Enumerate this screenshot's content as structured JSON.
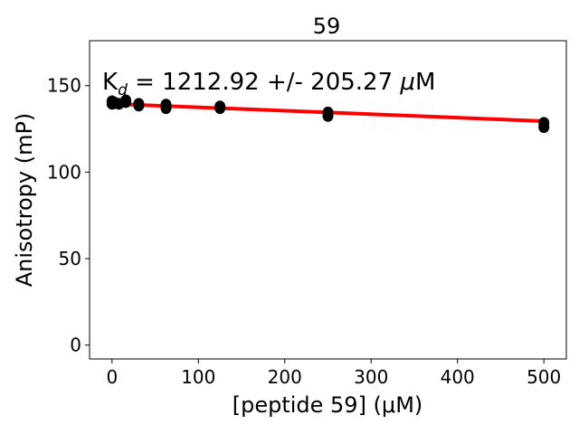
{
  "chart_data": {
    "type": "scatter",
    "title": "59",
    "xlabel": "[peptide 59] (μM)",
    "ylabel": "Anisotropy (mP)",
    "annotation": {
      "k": "K",
      "sub": "d",
      "rest": " = 1212.92 +/- 205.27 ",
      "mu": "μ",
      "unit": "M"
    },
    "xlim": [
      -26,
      526
    ],
    "ylim": [
      -8,
      176
    ],
    "xticks": [
      0,
      100,
      200,
      300,
      400,
      500
    ],
    "yticks": [
      0,
      50,
      100,
      150
    ],
    "grid": false,
    "points": [
      {
        "x": 0,
        "y": 141
      },
      {
        "x": 0,
        "y": 139.5
      },
      {
        "x": 4,
        "y": 140
      },
      {
        "x": 8,
        "y": 139.5
      },
      {
        "x": 16,
        "y": 141.5
      },
      {
        "x": 16,
        "y": 140.5
      },
      {
        "x": 31,
        "y": 139.5
      },
      {
        "x": 31,
        "y": 138.5
      },
      {
        "x": 62.5,
        "y": 139
      },
      {
        "x": 62.5,
        "y": 137
      },
      {
        "x": 125,
        "y": 138
      },
      {
        "x": 125,
        "y": 137
      },
      {
        "x": 250,
        "y": 134.5
      },
      {
        "x": 250,
        "y": 132.5
      },
      {
        "x": 500,
        "y": 128.5
      },
      {
        "x": 500,
        "y": 126
      }
    ],
    "fit_line": {
      "x": [
        0,
        500
      ],
      "y": [
        139.5,
        129.5
      ],
      "color": "#ff0000"
    },
    "marker_color": "#000000"
  }
}
